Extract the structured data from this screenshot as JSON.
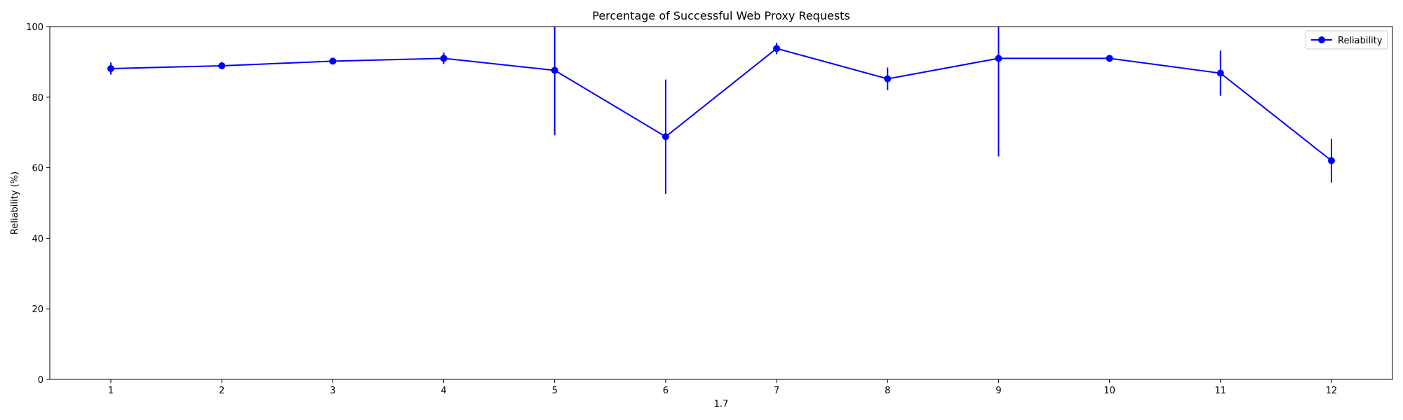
{
  "chart_data": {
    "type": "line",
    "title": "Percentage of Successful Web Proxy Requests",
    "xlabel": "1.7",
    "ylabel": "Reliability (%)",
    "x": [
      1,
      2,
      3,
      4,
      5,
      6,
      7,
      8,
      9,
      10,
      11,
      12
    ],
    "xlim": [
      0.45,
      12.55
    ],
    "ylim": [
      0,
      100
    ],
    "yticks": [
      0,
      20,
      40,
      60,
      80,
      100
    ],
    "grid": false,
    "legend_position": "top-right",
    "color": "#0000ff",
    "series": [
      {
        "name": "Reliability",
        "values": [
          88.1,
          88.9,
          90.2,
          91.0,
          87.6,
          68.8,
          93.8,
          85.2,
          91.0,
          91.0,
          86.8,
          62.0
        ],
        "error_low": [
          86.4,
          87.9,
          89.6,
          89.4,
          69.2,
          52.6,
          92.2,
          82.0,
          63.2,
          90.4,
          80.4,
          55.8
        ],
        "error_high": [
          89.8,
          89.9,
          90.8,
          92.6,
          100,
          85.0,
          95.4,
          88.4,
          100,
          91.6,
          93.2,
          68.2
        ]
      }
    ]
  }
}
